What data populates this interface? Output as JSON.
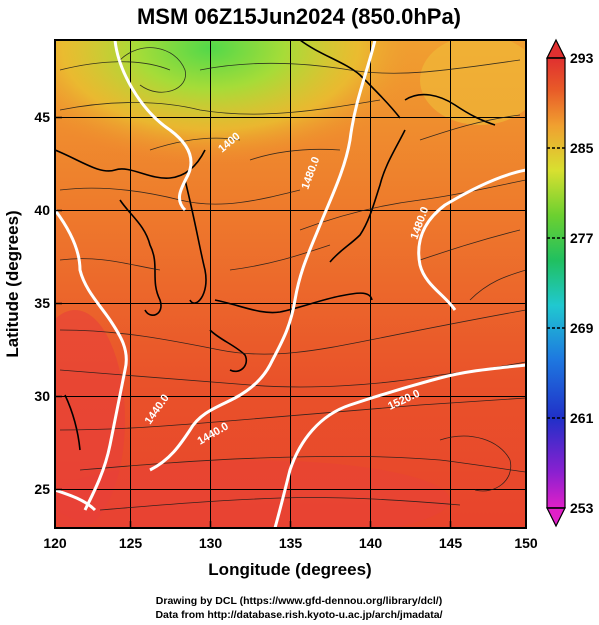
{
  "title": "MSM 06Z15Jun2024 (850.0hPa)",
  "x_axis": {
    "label": "Longitude (degrees)",
    "ticks": [
      "120",
      "125",
      "130",
      "135",
      "140",
      "145",
      "150"
    ]
  },
  "y_axis": {
    "label": "Latitude  (degrees)",
    "ticks": [
      "25",
      "30",
      "35",
      "40",
      "45"
    ]
  },
  "colorbar": {
    "ticks": [
      "293",
      "285",
      "277",
      "269",
      "261",
      "253"
    ],
    "min": 253,
    "max": 293
  },
  "contour_labels": [
    "1400",
    "1440.0",
    "1440.0",
    "1480.0",
    "1480.0",
    "1520.0"
  ],
  "credits": {
    "line1": "Drawing by DCL (https://www.gfd-dennou.org/library/dcl/)",
    "line2": "Data from http://database.rish.kyoto-u.ac.jp/arch/jmadata/"
  },
  "colors": {
    "warm": "#e8472a",
    "mid": "#f2a230",
    "cool": "#7fd23a",
    "contour": "#ffffff"
  },
  "map_data": {
    "lon_range": [
      120,
      150
    ],
    "lat_range": [
      22.5,
      48
    ],
    "variable": "temperature (K) with wind streamlines and geopotential height contours"
  }
}
